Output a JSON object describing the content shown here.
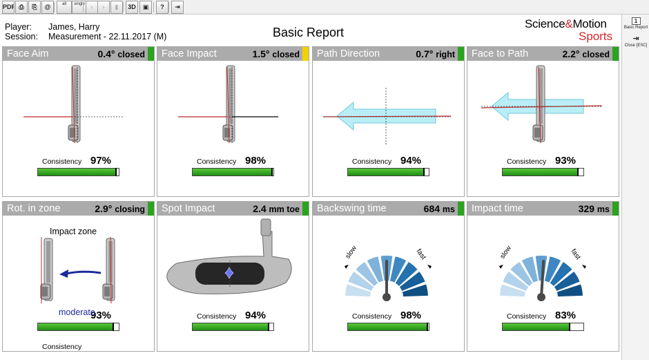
{
  "toolbar": {
    "buttons": [
      {
        "name": "pdf-export-button",
        "icon": "pdf-icon",
        "label": "PDF"
      },
      {
        "name": "print-button",
        "icon": "printer-icon",
        "label": "⎙"
      },
      {
        "name": "copy-button",
        "icon": "clipboard-icon",
        "label": "⎘"
      },
      {
        "name": "email-button",
        "icon": "at-sign-icon",
        "label": "@"
      },
      {
        "name": "all-button",
        "icon": "all-strokes-icon",
        "label": "all"
      },
      {
        "name": "single-button",
        "icon": "single-stroke-icon",
        "label": "single"
      },
      {
        "name": "previous-button",
        "icon": "chevron-left-icon",
        "label": "‹"
      },
      {
        "name": "next-button",
        "icon": "chevron-right-icon",
        "label": "›"
      },
      {
        "name": "delete-button",
        "icon": "trash-icon",
        "label": "▮"
      },
      {
        "name": "3d-button",
        "icon": "3d-icon",
        "label": "3D"
      },
      {
        "name": "video-button",
        "icon": "video-icon",
        "label": "▣"
      },
      {
        "name": "help-button",
        "icon": "question-icon",
        "label": "?"
      },
      {
        "name": "exit-button",
        "icon": "exit-door-icon",
        "label": "⇥"
      }
    ]
  },
  "side_panel": {
    "basic_report": {
      "label": "Basic Report",
      "icon_text": "1"
    },
    "close": {
      "label": "Close [ESC]",
      "icon_text": "⇥"
    }
  },
  "header": {
    "player_label": "Player:",
    "player_value": "James, Harry",
    "session_label": "Session:",
    "session_value": "Measurement - 22.11.2017 (M)",
    "title": "Basic Report",
    "logo_line1_a": "Science",
    "logo_line1_amp": "&",
    "logo_line1_b": "Motion",
    "logo_line2": "Sports"
  },
  "colors": {
    "green": "#2ba31f",
    "yellow": "#f2d300",
    "header_gray": "#ababab",
    "accent_red": "#d8262a"
  },
  "tiles": [
    {
      "name": "Face Aim",
      "value": "0.4°",
      "unit": "closed",
      "flag": "green",
      "consistency_label": "Consistency",
      "consistency": "97%",
      "consistency_frac": 0.97,
      "visual": "face-aim"
    },
    {
      "name": "Face Impact",
      "value": "1.5°",
      "unit": "closed",
      "flag": "yellow",
      "consistency_label": "Consistency",
      "consistency": "98%",
      "consistency_frac": 0.98,
      "visual": "face-impact"
    },
    {
      "name": "Path Direction",
      "value": "0.7°",
      "unit": "right",
      "flag": "green",
      "consistency_label": "Consistency",
      "consistency": "94%",
      "consistency_frac": 0.94,
      "visual": "path-direction"
    },
    {
      "name": "Face to Path",
      "value": "2.2°",
      "unit": "closed",
      "flag": "green",
      "consistency_label": "Consistency",
      "consistency": "93%",
      "consistency_frac": 0.93,
      "visual": "face-to-path"
    },
    {
      "name": "Rot. in zone",
      "value": "2.9°",
      "unit": "closing",
      "flag": "green",
      "consistency_label": "Consistency",
      "consistency": "93%",
      "consistency_frac": 0.93,
      "visual": "rotation",
      "zone_label": "Impact zone",
      "zone_rating": "moderate"
    },
    {
      "name": "Spot Impact",
      "value": "2.4",
      "unit": "mm toe",
      "flag": "green",
      "consistency_label": "Consistency",
      "consistency": "94%",
      "consistency_frac": 0.94,
      "visual": "spot-impact"
    },
    {
      "name": "Backswing time",
      "value": "684",
      "unit": "ms",
      "flag": "green",
      "consistency_label": "Consistency",
      "consistency": "98%",
      "consistency_frac": 0.98,
      "visual": "gauge",
      "gauge_slow": "slow",
      "gauge_fast": "fast",
      "gauge_level": 0.5
    },
    {
      "name": "Impact time",
      "value": "329",
      "unit": "ms",
      "flag": "green",
      "consistency_label": "Consistency",
      "consistency": "83%",
      "consistency_frac": 0.83,
      "visual": "gauge",
      "gauge_slow": "slow",
      "gauge_fast": "fast",
      "gauge_level": 0.52
    }
  ]
}
